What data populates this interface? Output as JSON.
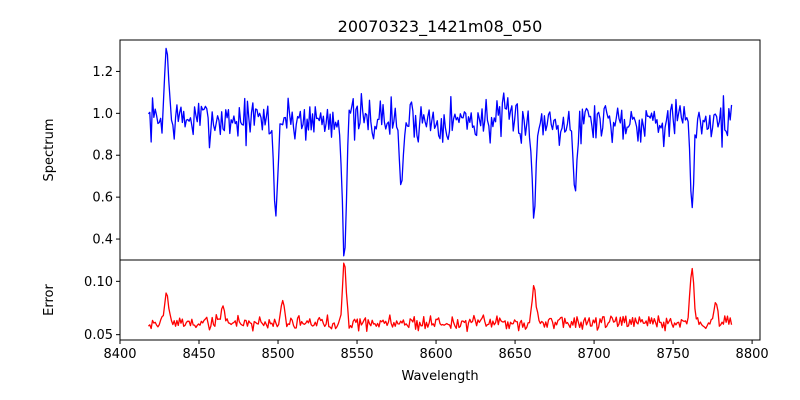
{
  "chart_data": [
    {
      "type": "line",
      "title": "20070323_1421m08_050",
      "ylabel": "Spectrum",
      "xlabel": "",
      "xlim": [
        8400,
        8805
      ],
      "ylim": [
        0.3,
        1.35
      ],
      "xticks": [
        8400,
        8450,
        8500,
        8550,
        8600,
        8650,
        8700,
        8750,
        8800
      ],
      "yticks": [
        0.4,
        0.6,
        0.8,
        1.0,
        1.2
      ],
      "ytick_labels": [
        "0.4",
        "0.6",
        "0.8",
        "1.0",
        "1.2"
      ],
      "color": "#0000ff",
      "series": [
        {
          "x_range": [
            8418,
            8787
          ],
          "baseline": 0.97,
          "noise": 0.075,
          "features": [
            {
              "x": 8429.5,
              "y": 1.31
            },
            {
              "x": 8498.5,
              "y": 0.51
            },
            {
              "x": 8542,
              "y": 0.32
            },
            {
              "x": 8578,
              "y": 0.66
            },
            {
              "x": 8662,
              "y": 0.5
            },
            {
              "x": 8688,
              "y": 0.63
            },
            {
              "x": 8762,
              "y": 0.55
            }
          ]
        }
      ]
    },
    {
      "type": "line",
      "title": "",
      "ylabel": "Error",
      "xlabel": "Wavelength",
      "xlim": [
        8400,
        8805
      ],
      "ylim": [
        0.045,
        0.12
      ],
      "xticks": [
        8400,
        8450,
        8500,
        8550,
        8600,
        8650,
        8700,
        8750,
        8800
      ],
      "xtick_labels": [
        "8400",
        "8450",
        "8500",
        "8550",
        "8600",
        "8650",
        "8700",
        "8750",
        "8800"
      ],
      "yticks": [
        0.05,
        0.1
      ],
      "ytick_labels": [
        "0.05",
        "0.10"
      ],
      "color": "#ff0000",
      "series": [
        {
          "x_range": [
            8418,
            8787
          ],
          "baseline": 0.061,
          "noise": 0.005,
          "features": [
            {
              "x": 8429.5,
              "y": 0.089
            },
            {
              "x": 8465,
              "y": 0.077
            },
            {
              "x": 8503,
              "y": 0.082
            },
            {
              "x": 8542,
              "y": 0.117
            },
            {
              "x": 8662,
              "y": 0.096
            },
            {
              "x": 8762,
              "y": 0.112
            },
            {
              "x": 8777,
              "y": 0.08
            }
          ]
        }
      ]
    }
  ]
}
